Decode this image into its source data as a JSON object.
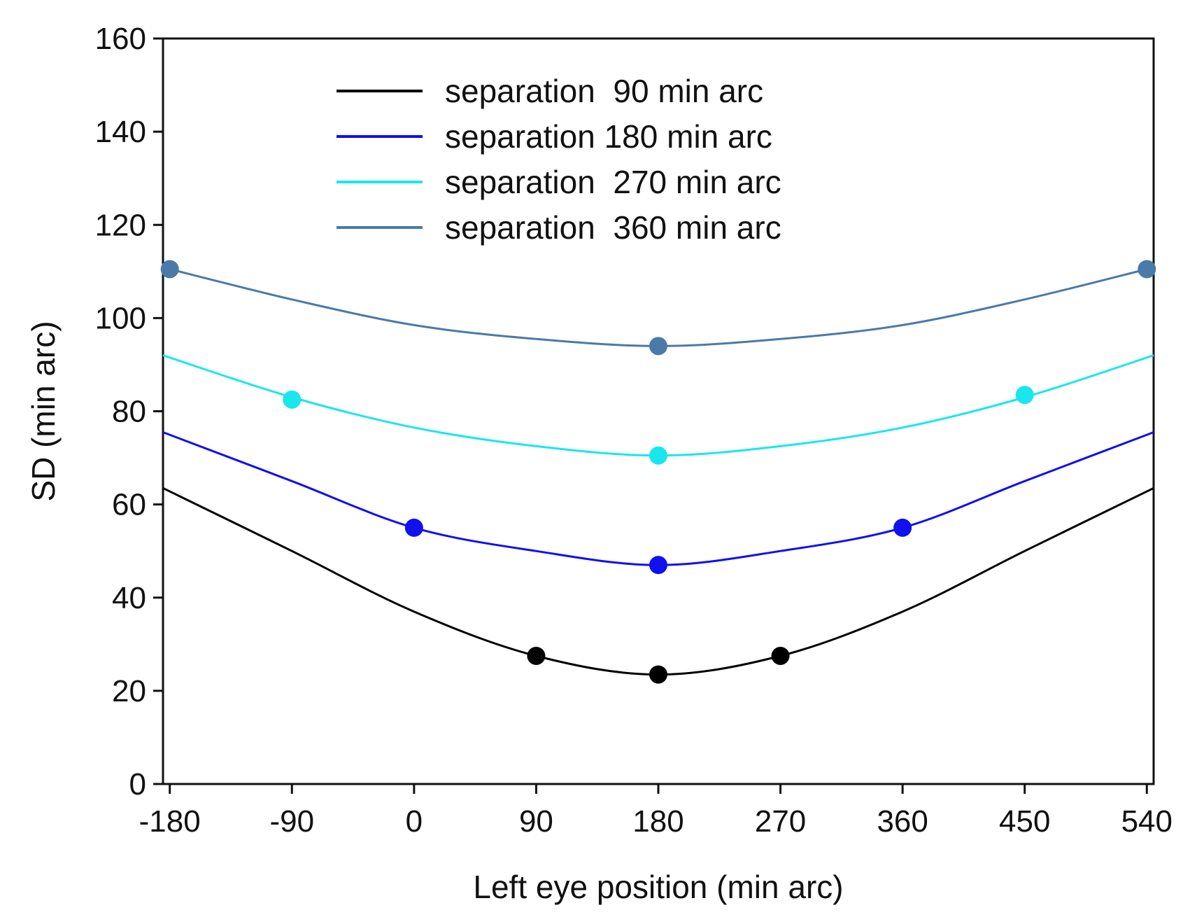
{
  "chart_data": {
    "type": "line",
    "title": "",
    "xlabel": "Left eye position (min arc)",
    "ylabel": "SD (min arc)",
    "xlim": [
      -185,
      545
    ],
    "ylim": [
      0,
      160
    ],
    "xticks": [
      -180,
      -90,
      0,
      90,
      180,
      270,
      360,
      450,
      540
    ],
    "xtick_labels": [
      "-180",
      "-90",
      "0",
      "90",
      "180",
      "270",
      "360",
      "450",
      "540"
    ],
    "yticks": [
      0,
      20,
      40,
      60,
      80,
      100,
      120,
      140,
      160
    ],
    "ytick_labels": [
      "0",
      "20",
      "40",
      "60",
      "80",
      "100",
      "120",
      "140",
      "160"
    ],
    "legend_position": "top-center",
    "series": [
      {
        "name": "separation  90 min arc",
        "color": "#000000",
        "curve": {
          "x": [
            -185,
            -90,
            0,
            90,
            180,
            270,
            360,
            450,
            545
          ],
          "y": [
            63.5,
            50,
            37,
            27.5,
            23.5,
            27.5,
            37,
            50,
            63.5
          ]
        },
        "points": {
          "x": [
            90,
            180,
            270
          ],
          "y": [
            27.5,
            23.5,
            27.5
          ]
        }
      },
      {
        "name": "separation 180 min arc",
        "color": "#1010f0",
        "curve": {
          "x": [
            -185,
            -90,
            0,
            90,
            180,
            270,
            360,
            450,
            545
          ],
          "y": [
            75.5,
            65,
            55,
            50,
            47,
            50,
            55,
            65,
            75.5
          ]
        },
        "points": {
          "x": [
            0,
            180,
            360
          ],
          "y": [
            55,
            47,
            55
          ]
        }
      },
      {
        "name": "separation  270 min arc",
        "color": "#1ae6ee",
        "curve": {
          "x": [
            -185,
            -90,
            0,
            90,
            180,
            270,
            360,
            450,
            545
          ],
          "y": [
            92,
            83,
            76.5,
            72.5,
            70.5,
            72.5,
            76.5,
            83,
            92
          ]
        },
        "points": {
          "x": [
            -90,
            180,
            450
          ],
          "y": [
            82.5,
            70.5,
            83.5
          ]
        }
      },
      {
        "name": "separation  360 min arc",
        "color": "#4a7aa8",
        "curve": {
          "x": [
            -180,
            -90,
            0,
            90,
            180,
            270,
            360,
            450,
            540
          ],
          "y": [
            110.5,
            104,
            98.5,
            95.5,
            94,
            95.5,
            98.5,
            104,
            110.5
          ]
        },
        "points": {
          "x": [
            -180,
            180,
            540
          ],
          "y": [
            110.5,
            94,
            110.5
          ]
        }
      }
    ]
  }
}
